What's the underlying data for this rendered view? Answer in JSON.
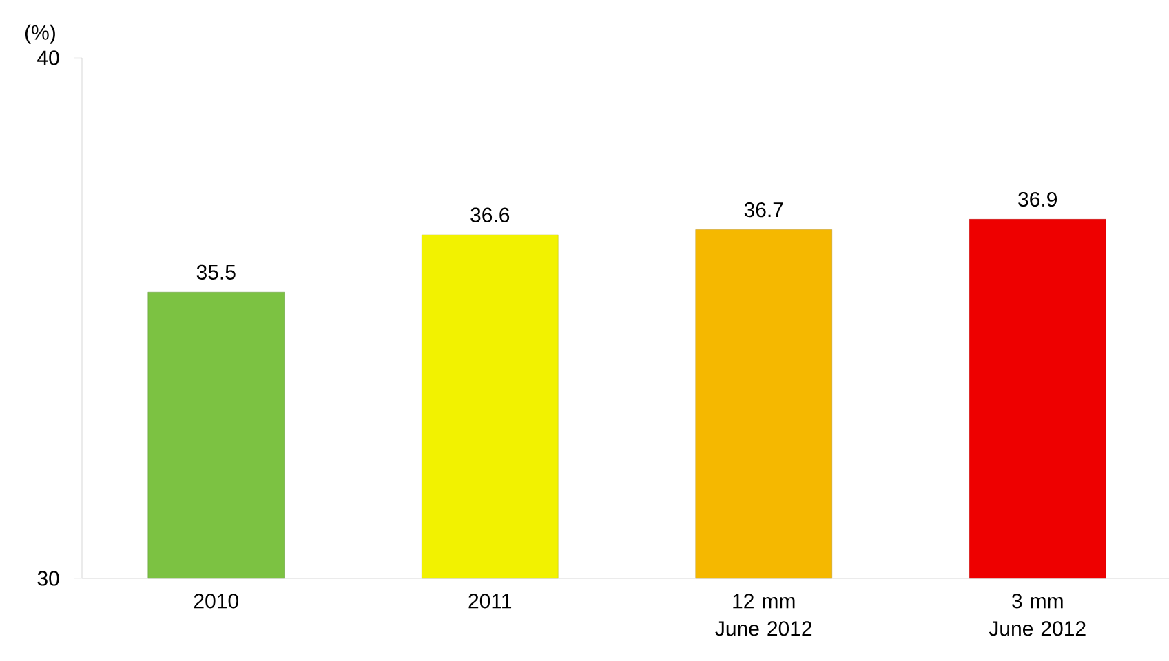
{
  "chart_data": {
    "type": "bar",
    "ylabel": "(%)",
    "categories": [
      "2010",
      "2011",
      "12 mm June 2012",
      "3 mm June 2012"
    ],
    "values": [
      35.5,
      36.6,
      36.7,
      36.9
    ],
    "colors": [
      "#7cc242",
      "#f2f200",
      "#f5b800",
      "#ee0000"
    ],
    "ylim": [
      30,
      40
    ],
    "yticks": [
      30,
      40
    ],
    "data_labels": true
  }
}
